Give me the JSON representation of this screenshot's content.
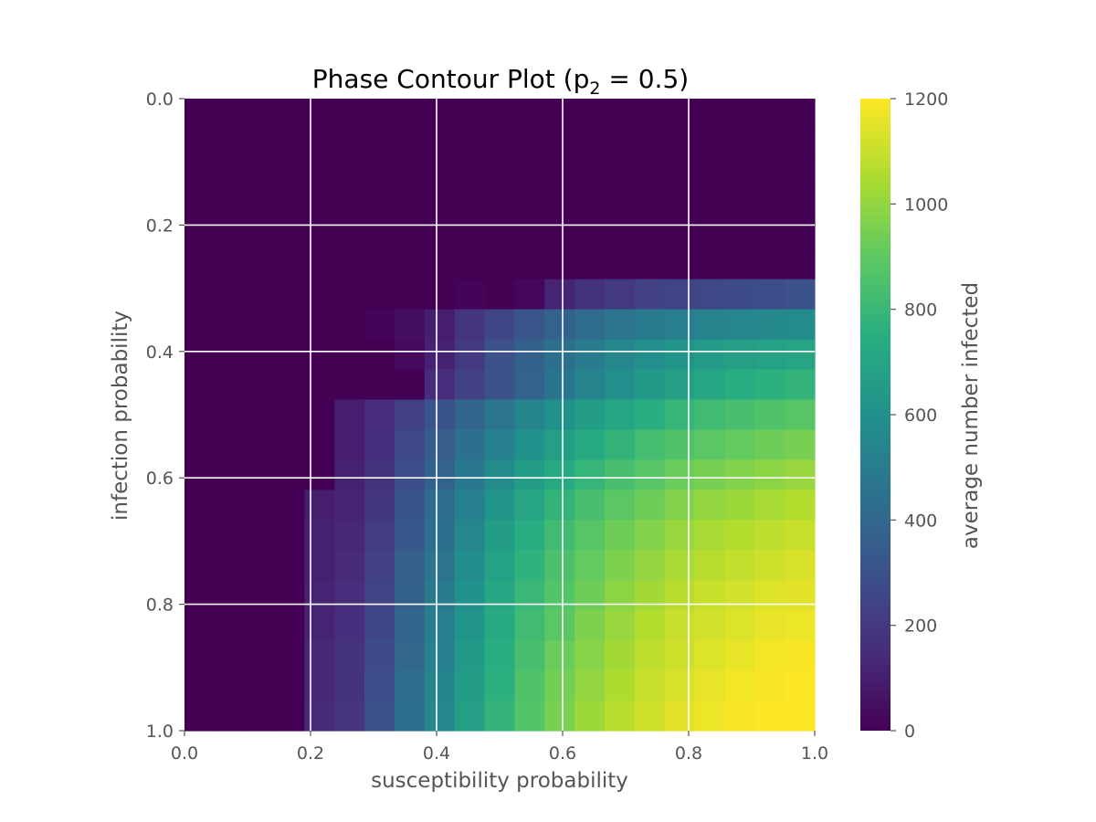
{
  "chart_data": {
    "type": "heatmap",
    "title": "Phase Contour Plot (p",
    "title_sub": "2",
    "title_suffix": " = 0.5)",
    "xlabel": "susceptibility probability",
    "ylabel": "infection probability",
    "colorbar_label": "average number infected",
    "colormap": "viridis",
    "xlim": [
      0,
      1
    ],
    "ylim": [
      0,
      1
    ],
    "y_inverted": true,
    "grid": true,
    "grid_color": "#ffffff",
    "x_ticks": [
      "0.0",
      "0.2",
      "0.4",
      "0.6",
      "0.8",
      "1.0"
    ],
    "y_ticks": [
      "0.0",
      "0.2",
      "0.4",
      "0.6",
      "0.8",
      "1.0"
    ],
    "colorbar_ticks": [
      "0",
      "200",
      "400",
      "600",
      "800",
      "1000",
      "1200"
    ],
    "colorbar_range": [
      0,
      1200
    ],
    "grid_size": 21,
    "x_values": [
      0.0,
      0.05,
      0.1,
      0.15,
      0.2,
      0.25,
      0.3,
      0.35,
      0.4,
      0.45,
      0.5,
      0.55,
      0.6,
      0.65,
      0.7,
      0.75,
      0.8,
      0.85,
      0.9,
      0.95,
      1.0
    ],
    "y_values": [
      0.0,
      0.05,
      0.1,
      0.15,
      0.2,
      0.25,
      0.3,
      0.35,
      0.4,
      0.45,
      0.5,
      0.55,
      0.6,
      0.65,
      0.7,
      0.75,
      0.8,
      0.85,
      0.9,
      0.95,
      1.0
    ],
    "values": [
      [
        0,
        0,
        0,
        0,
        0,
        0,
        0,
        0,
        0,
        0,
        0,
        0,
        0,
        0,
        0,
        0,
        0,
        0,
        0,
        0,
        0
      ],
      [
        0,
        0,
        0,
        0,
        0,
        0,
        0,
        0,
        0,
        0,
        0,
        0,
        0,
        0,
        0,
        0,
        0,
        0,
        0,
        0,
        0
      ],
      [
        0,
        0,
        0,
        0,
        0,
        0,
        0,
        0,
        0,
        0,
        0,
        0,
        0,
        0,
        0,
        0,
        0,
        0,
        0,
        0,
        0
      ],
      [
        0,
        0,
        0,
        0,
        0,
        0,
        0,
        0,
        0,
        0,
        0,
        0,
        0,
        0,
        0,
        0,
        0,
        0,
        0,
        0,
        0
      ],
      [
        0,
        0,
        0,
        0,
        0,
        0,
        0,
        0,
        0,
        0,
        0,
        0,
        0,
        0,
        0,
        0,
        0,
        0,
        0,
        0,
        0
      ],
      [
        0,
        0,
        0,
        0,
        0,
        0,
        0,
        0,
        0,
        0,
        0,
        0,
        0,
        0,
        0,
        0,
        0,
        0,
        0,
        0,
        0
      ],
      [
        0,
        0,
        0,
        0,
        0,
        0,
        0,
        0,
        0,
        15,
        5,
        20,
        120,
        170,
        200,
        230,
        240,
        260,
        270,
        280,
        300
      ],
      [
        0,
        0,
        0,
        0,
        0,
        0,
        10,
        40,
        100,
        180,
        250,
        320,
        380,
        420,
        470,
        490,
        510,
        530,
        545,
        555,
        570
      ],
      [
        0,
        0,
        0,
        0,
        0,
        0,
        0,
        30,
        110,
        200,
        290,
        370,
        440,
        500,
        550,
        590,
        620,
        650,
        670,
        690,
        700
      ],
      [
        0,
        0,
        0,
        0,
        0,
        0,
        0,
        5,
        150,
        230,
        300,
        380,
        460,
        530,
        590,
        640,
        680,
        710,
        740,
        760,
        780
      ],
      [
        0,
        0,
        0,
        0,
        0,
        100,
        150,
        230,
        310,
        390,
        470,
        540,
        600,
        660,
        710,
        750,
        790,
        820,
        840,
        860,
        880
      ],
      [
        0,
        0,
        0,
        0,
        0,
        100,
        160,
        260,
        350,
        440,
        520,
        600,
        670,
        730,
        780,
        830,
        860,
        890,
        910,
        930,
        950
      ],
      [
        0,
        0,
        0,
        0,
        0,
        110,
        170,
        280,
        380,
        480,
        570,
        660,
        730,
        790,
        840,
        880,
        920,
        950,
        970,
        990,
        1010
      ],
      [
        0,
        0,
        0,
        0,
        100,
        120,
        190,
        310,
        420,
        520,
        620,
        700,
        780,
        840,
        890,
        930,
        970,
        1000,
        1020,
        1040,
        1060
      ],
      [
        0,
        0,
        0,
        0,
        110,
        130,
        210,
        330,
        440,
        550,
        660,
        740,
        820,
        880,
        930,
        970,
        1010,
        1040,
        1060,
        1080,
        1100
      ],
      [
        0,
        0,
        0,
        0,
        110,
        140,
        230,
        360,
        470,
        580,
        690,
        770,
        850,
        910,
        960,
        1000,
        1040,
        1070,
        1090,
        1110,
        1130
      ],
      [
        0,
        0,
        0,
        0,
        120,
        150,
        240,
        370,
        490,
        600,
        710,
        800,
        870,
        930,
        990,
        1030,
        1070,
        1100,
        1120,
        1140,
        1150
      ],
      [
        0,
        0,
        0,
        0,
        120,
        160,
        250,
        390,
        510,
        620,
        730,
        820,
        890,
        960,
        1010,
        1060,
        1100,
        1120,
        1140,
        1160,
        1170
      ],
      [
        0,
        0,
        0,
        0,
        130,
        170,
        270,
        400,
        520,
        640,
        750,
        840,
        920,
        980,
        1030,
        1080,
        1110,
        1140,
        1160,
        1180,
        1190
      ],
      [
        0,
        0,
        0,
        0,
        130,
        170,
        280,
        420,
        540,
        660,
        760,
        860,
        940,
        1000,
        1050,
        1100,
        1130,
        1160,
        1180,
        1190,
        1200
      ],
      [
        0,
        0,
        0,
        0,
        140,
        180,
        290,
        430,
        550,
        670,
        780,
        870,
        950,
        1020,
        1070,
        1110,
        1150,
        1170,
        1190,
        1200,
        1210
      ]
    ]
  }
}
